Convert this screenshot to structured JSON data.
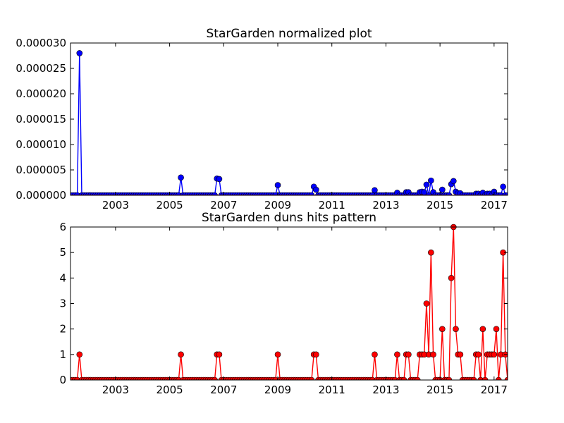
{
  "chart_data": [
    {
      "type": "line",
      "title": "StarGarden normalized plot",
      "xlabel": "",
      "ylabel": "",
      "xlim": [
        "2001-05",
        "2017-07"
      ],
      "ylim": [
        0,
        3e-05
      ],
      "xticks": [
        "2003",
        "2005",
        "2007",
        "2009",
        "2011",
        "2013",
        "2015",
        "2017"
      ],
      "yticks": [
        "0.000000",
        "0.000005",
        "0.000010",
        "0.000015",
        "0.000020",
        "0.000025",
        "0.000030"
      ],
      "grid": false,
      "series": [
        {
          "color": "#0000ff",
          "marker": "circle",
          "points": [
            {
              "x": "2001-05",
              "y": 0
            },
            {
              "x": "2001-06",
              "y": 0
            },
            {
              "x": "2001-07",
              "y": 0
            },
            {
              "x": "2001-08",
              "y": 0
            },
            {
              "x": "2001-09",
              "y": 2.8e-05
            },
            {
              "x": "2001-10",
              "y": 0
            },
            {
              "x": "2001-11",
              "y": 0
            },
            {
              "x": "2001-12",
              "y": 0
            },
            {
              "x": "2005-06",
              "y": 3.5e-06
            },
            {
              "x": "2006-10",
              "y": 3.3e-06
            },
            {
              "x": "2006-11",
              "y": 3.2e-06
            },
            {
              "x": "2009-01",
              "y": 2e-06
            },
            {
              "x": "2010-05",
              "y": 1.7e-06
            },
            {
              "x": "2010-06",
              "y": 1.1e-06
            },
            {
              "x": "2012-08",
              "y": 1e-06
            },
            {
              "x": "2013-06",
              "y": 5e-07
            },
            {
              "x": "2013-10",
              "y": 6e-07
            },
            {
              "x": "2013-11",
              "y": 6e-07
            },
            {
              "x": "2014-04",
              "y": 6e-07
            },
            {
              "x": "2014-05",
              "y": 7e-07
            },
            {
              "x": "2014-06",
              "y": 6e-07
            },
            {
              "x": "2014-07",
              "y": 2.1e-06
            },
            {
              "x": "2014-09",
              "y": 2.9e-06
            },
            {
              "x": "2014-10",
              "y": 6e-07
            },
            {
              "x": "2015-02",
              "y": 1.1e-06
            },
            {
              "x": "2015-06",
              "y": 2.2e-06
            },
            {
              "x": "2015-07",
              "y": 2.8e-06
            },
            {
              "x": "2015-08",
              "y": 7e-07
            },
            {
              "x": "2015-09",
              "y": 4e-07
            },
            {
              "x": "2015-10",
              "y": 4e-07
            },
            {
              "x": "2016-05",
              "y": 3e-07
            },
            {
              "x": "2016-06",
              "y": 3e-07
            },
            {
              "x": "2016-08",
              "y": 5e-07
            },
            {
              "x": "2016-10",
              "y": 3e-07
            },
            {
              "x": "2016-11",
              "y": 3e-07
            },
            {
              "x": "2017-01",
              "y": 7e-07
            },
            {
              "x": "2017-05",
              "y": 1.7e-06
            }
          ]
        },
        {
          "color": "#ff0000",
          "marker": "none",
          "points": [
            {
              "x": "2001-05",
              "y": 0
            },
            {
              "x": "2017-07",
              "y": 0
            }
          ]
        }
      ]
    },
    {
      "type": "line",
      "title": "StarGarden duns hits pattern",
      "xlabel": "",
      "ylabel": "",
      "xlim": [
        "2001-05",
        "2017-07"
      ],
      "ylim": [
        0,
        6
      ],
      "xticks": [
        "2003",
        "2005",
        "2007",
        "2009",
        "2011",
        "2013",
        "2015",
        "2017"
      ],
      "yticks": [
        "0",
        "1",
        "2",
        "3",
        "4",
        "5",
        "6"
      ],
      "grid": false,
      "series": [
        {
          "color": "#ff0000",
          "marker": "circle",
          "points": [
            {
              "x": "2001-09",
              "y": 1
            },
            {
              "x": "2005-06",
              "y": 1
            },
            {
              "x": "2006-10",
              "y": 1
            },
            {
              "x": "2006-11",
              "y": 1
            },
            {
              "x": "2009-01",
              "y": 1
            },
            {
              "x": "2010-05",
              "y": 1
            },
            {
              "x": "2010-06",
              "y": 1
            },
            {
              "x": "2012-08",
              "y": 1
            },
            {
              "x": "2013-06",
              "y": 1
            },
            {
              "x": "2013-10",
              "y": 1
            },
            {
              "x": "2013-11",
              "y": 1
            },
            {
              "x": "2014-04",
              "y": 1
            },
            {
              "x": "2014-05",
              "y": 1
            },
            {
              "x": "2014-06",
              "y": 1
            },
            {
              "x": "2014-07",
              "y": 3
            },
            {
              "x": "2014-08",
              "y": 1
            },
            {
              "x": "2014-09",
              "y": 5
            },
            {
              "x": "2014-10",
              "y": 1
            },
            {
              "x": "2015-02",
              "y": 2
            },
            {
              "x": "2015-06",
              "y": 4
            },
            {
              "x": "2015-07",
              "y": 6
            },
            {
              "x": "2015-08",
              "y": 2
            },
            {
              "x": "2015-09",
              "y": 1
            },
            {
              "x": "2015-10",
              "y": 1
            },
            {
              "x": "2016-05",
              "y": 1
            },
            {
              "x": "2016-06",
              "y": 1
            },
            {
              "x": "2016-08",
              "y": 2
            },
            {
              "x": "2016-10",
              "y": 1
            },
            {
              "x": "2016-11",
              "y": 1
            },
            {
              "x": "2016-12",
              "y": 1
            },
            {
              "x": "2017-01",
              "y": 1
            },
            {
              "x": "2017-02",
              "y": 2
            },
            {
              "x": "2017-04",
              "y": 1
            },
            {
              "x": "2017-05",
              "y": 5
            },
            {
              "x": "2017-06",
              "y": 1
            }
          ]
        }
      ]
    }
  ]
}
